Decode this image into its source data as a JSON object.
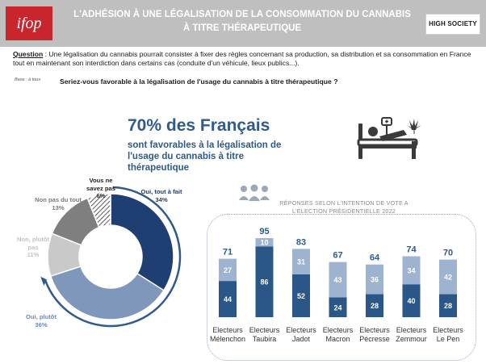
{
  "header": {
    "logo_left": "ifop",
    "title_line1": "L'ADHÉSION À UNE LÉGALISATION DE LA CONSOMMATION DU CANNABIS",
    "title_line2": "À TITRE THÉRAPEUTIQUE",
    "logo_right": "HIGH SOCIETY"
  },
  "question": {
    "label": "Question",
    "text": " : Une légalisation du cannabis pourrait consister à fixer des règles concernant sa production, sa distribution et sa consommation en France tout en maintenant son interdiction dans certains cas (conduite d'un véhicule, lieux publics...)."
  },
  "base": "Base : à tous",
  "subquestion": "Seriez-vous favorable à la légalisation de l'usage du cannabis à titre thérapeutique ?",
  "headline": "70% des Français",
  "subhead": "sont favorables à la légalisation de l'usage du cannabis à titre thérapeutique",
  "icons": [
    "hospital-bed-icon",
    "cannabis-leaf-icon",
    "people-icon"
  ],
  "chart_data": [
    {
      "type": "pie",
      "donut": true,
      "labels": [
        "Oui, tout à fait",
        "Oui, plutôt",
        "Non, plutôt pas",
        "Non pas du tout",
        "Vous ne savez pas"
      ],
      "values": [
        34,
        36,
        11,
        13,
        6
      ],
      "value_labels": [
        "34%",
        "36%",
        "11%",
        "13%",
        "6%"
      ],
      "colors": [
        "#1f3f72",
        "#7f97bb",
        "#c9c9c9",
        "#7f7f7f",
        "#ffffff"
      ]
    },
    {
      "type": "bar",
      "stacked": true,
      "title_line1": "RÉPONSES SELON L'INTENTION DE VOTE A",
      "title_line2": "L'ÉLECTION PRÉSIDENTIELLE 2022",
      "categories": [
        [
          "Electeurs",
          "Mélenchon"
        ],
        [
          "Electeurs",
          "Taubira"
        ],
        [
          "Electeurs",
          "Jadot"
        ],
        [
          "Electeurs",
          "Macron"
        ],
        [
          "Electeurs",
          "Pécresse"
        ],
        [
          "Electeurs",
          "Zemmour"
        ],
        [
          "Electeurs",
          "Le Pen"
        ]
      ],
      "totals": [
        71,
        95,
        83,
        67,
        64,
        74,
        70
      ],
      "series": [
        {
          "values": [
            44,
            86,
            52,
            24,
            28,
            40,
            28
          ],
          "color": "#2a5787"
        },
        {
          "values": [
            27,
            10,
            31,
            43,
            36,
            34,
            42
          ],
          "color": "#9eb3cf"
        }
      ],
      "ylim": [
        0,
        100
      ]
    }
  ]
}
